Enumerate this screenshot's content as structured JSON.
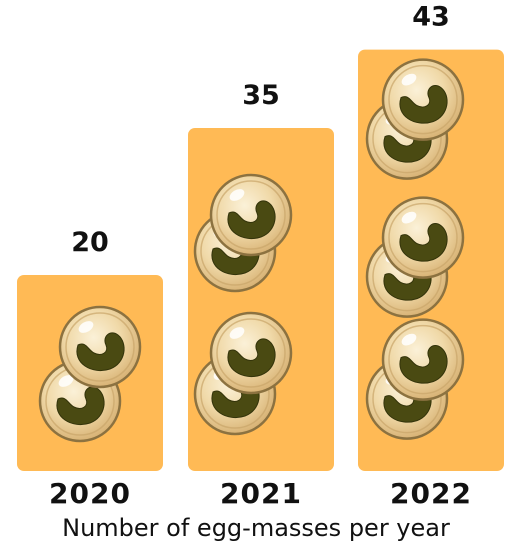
{
  "chart_data": {
    "type": "bar",
    "categories": [
      "2020",
      "2021",
      "2022"
    ],
    "values": [
      20,
      35,
      43
    ],
    "title": "",
    "xlabel": "Number of egg-masses per year",
    "ylabel": "",
    "ylim": [
      0,
      50
    ],
    "value_labels": [
      "20",
      "35",
      "43"
    ],
    "grid": false,
    "legend": "none",
    "bar_color": "#FFBA55",
    "egg_icon": "frog-egg-icon",
    "egg_colors": {
      "shell": "#E9C98F",
      "rim": "#A98A52",
      "embryo": "#4A4A12",
      "highlight": "#FFFFFF"
    }
  }
}
